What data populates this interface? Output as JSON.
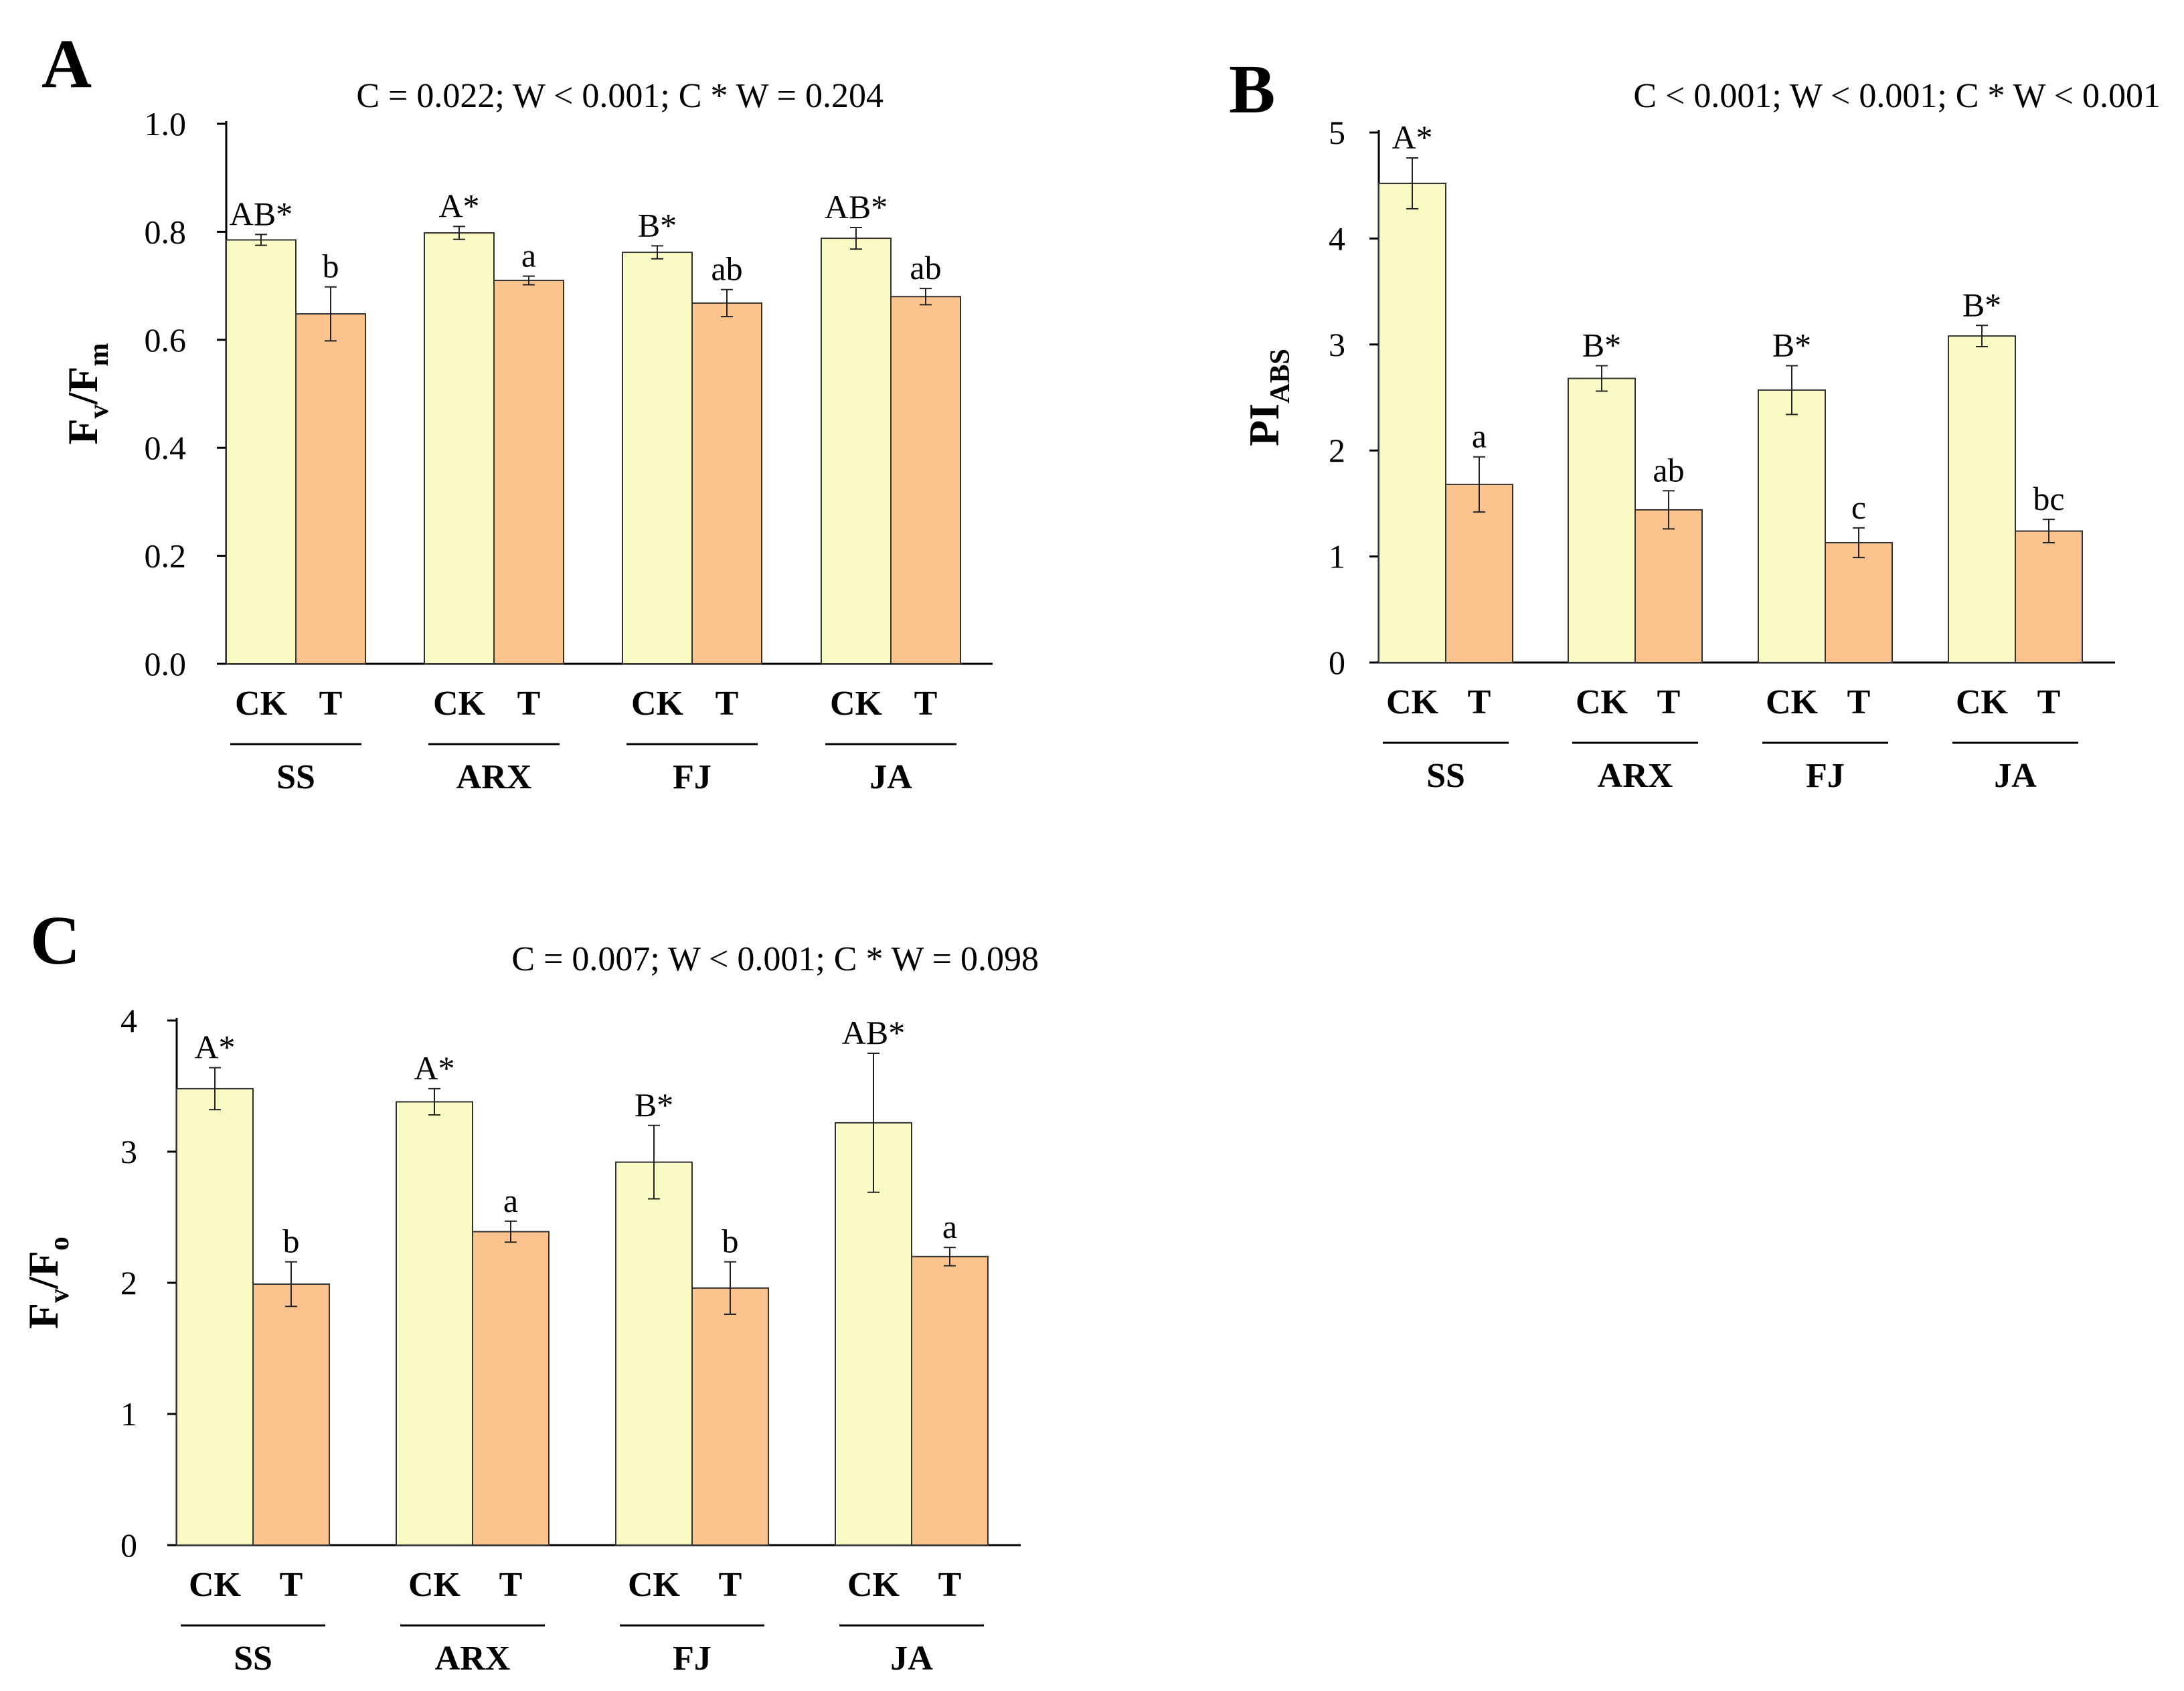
{
  "colors": {
    "ck": "#fafbc4",
    "t": "#fbc48e",
    "axis": "#000000",
    "bar_stroke": "#333333"
  },
  "chart_data": [
    {
      "id": "A",
      "type": "bar",
      "panel_label": "A",
      "stats": "C = 0.022; W < 0.001; C * W = 0.204",
      "ylabel": {
        "main": "F",
        "sub1": "v",
        "slash": "/F",
        "sub2": "m"
      },
      "ylim": [
        0,
        1.0
      ],
      "yticks": [
        0.0,
        0.2,
        0.4,
        0.6,
        0.8,
        1.0
      ],
      "ytick_labels": [
        "0.0",
        "0.2",
        "0.4",
        "0.6",
        "0.8",
        "1.0"
      ],
      "categories": [
        "SS",
        "ARX",
        "FJ",
        "JA"
      ],
      "series": [
        {
          "name": "CK",
          "values": [
            0.785,
            0.798,
            0.762,
            0.788
          ],
          "errors": [
            0.01,
            0.012,
            0.012,
            0.02
          ],
          "letters": [
            "AB*",
            "A*",
            "B*",
            "AB*"
          ]
        },
        {
          "name": "T",
          "values": [
            0.648,
            0.71,
            0.668,
            0.68
          ],
          "errors": [
            0.05,
            0.008,
            0.025,
            0.015
          ],
          "letters": [
            "b",
            "a",
            "ab",
            "ab"
          ]
        }
      ]
    },
    {
      "id": "B",
      "type": "bar",
      "panel_label": "B",
      "stats": "C < 0.001; W < 0.001; C * W < 0.001",
      "ylabel": {
        "main": "PI",
        "sub1": "ABS",
        "slash": "",
        "sub2": ""
      },
      "ylim": [
        0,
        5
      ],
      "yticks": [
        0,
        1,
        2,
        3,
        4,
        5
      ],
      "ytick_labels": [
        "0",
        "1",
        "2",
        "3",
        "4",
        "5"
      ],
      "categories": [
        "SS",
        "ARX",
        "FJ",
        "JA"
      ],
      "series": [
        {
          "name": "CK",
          "values": [
            4.52,
            2.68,
            2.57,
            3.08
          ],
          "errors": [
            0.24,
            0.12,
            0.23,
            0.1
          ],
          "letters": [
            "A*",
            "B*",
            "B*",
            "B*"
          ]
        },
        {
          "name": "T",
          "values": [
            1.68,
            1.44,
            1.13,
            1.24
          ],
          "errors": [
            0.26,
            0.18,
            0.14,
            0.11
          ],
          "letters": [
            "a",
            "ab",
            "c",
            "bc"
          ]
        }
      ]
    },
    {
      "id": "C",
      "type": "bar",
      "panel_label": "C",
      "stats": "C = 0.007; W < 0.001; C * W = 0.098",
      "ylabel": {
        "main": "F",
        "sub1": "v",
        "slash": "/F",
        "sub2": "o"
      },
      "ylim": [
        0,
        4
      ],
      "yticks": [
        0,
        1,
        2,
        3,
        4
      ],
      "ytick_labels": [
        "0",
        "1",
        "2",
        "3",
        "4"
      ],
      "categories": [
        "SS",
        "ARX",
        "FJ",
        "JA"
      ],
      "series": [
        {
          "name": "CK",
          "values": [
            3.48,
            3.38,
            2.92,
            3.22
          ],
          "errors": [
            0.16,
            0.1,
            0.28,
            0.53
          ],
          "letters": [
            "A*",
            "A*",
            "B*",
            "AB*"
          ]
        },
        {
          "name": "T",
          "values": [
            1.99,
            2.39,
            1.96,
            2.2
          ],
          "errors": [
            0.17,
            0.08,
            0.2,
            0.07
          ],
          "letters": [
            "b",
            "a",
            "b",
            "a"
          ]
        }
      ]
    }
  ]
}
